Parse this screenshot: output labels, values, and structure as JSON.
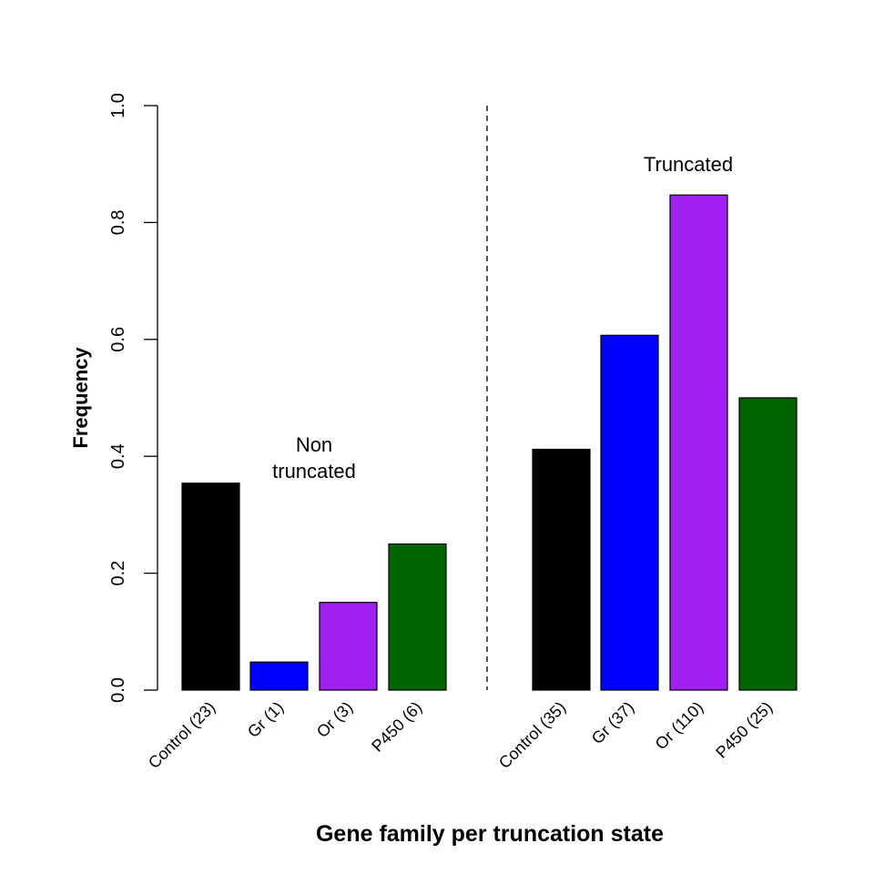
{
  "chart_data": {
    "type": "bar",
    "title": "",
    "xlabel": "Gene family per truncation state",
    "ylabel": "Frequency",
    "ylim": [
      0,
      1.0
    ],
    "yticks": [
      "0.0",
      "0.2",
      "0.4",
      "0.6",
      "0.8",
      "1.0"
    ],
    "yticks_values": [
      0,
      0.2,
      0.4,
      0.6,
      0.8,
      1.0
    ],
    "grid": false,
    "categories": [
      "Control (23)",
      "Gr (1)",
      "Or (3)",
      "P450 (6)",
      "Control (35)",
      "Gr (37)",
      "Or (110)",
      "P450 (25)"
    ],
    "values": [
      0.354,
      0.048,
      0.15,
      0.25,
      0.412,
      0.607,
      0.847,
      0.5
    ],
    "colors": [
      "#000000",
      "#0000ff",
      "#a020f0",
      "#006400",
      "#000000",
      "#0000ff",
      "#a020f0",
      "#006400"
    ],
    "groups": [
      {
        "label_lines": [
          "Non",
          "truncated"
        ],
        "bars": [
          0,
          1,
          2,
          3
        ]
      },
      {
        "label_lines": [
          "Truncated"
        ],
        "bars": [
          4,
          5,
          6,
          7
        ]
      }
    ],
    "divider": "dashed vertical line between groups"
  }
}
